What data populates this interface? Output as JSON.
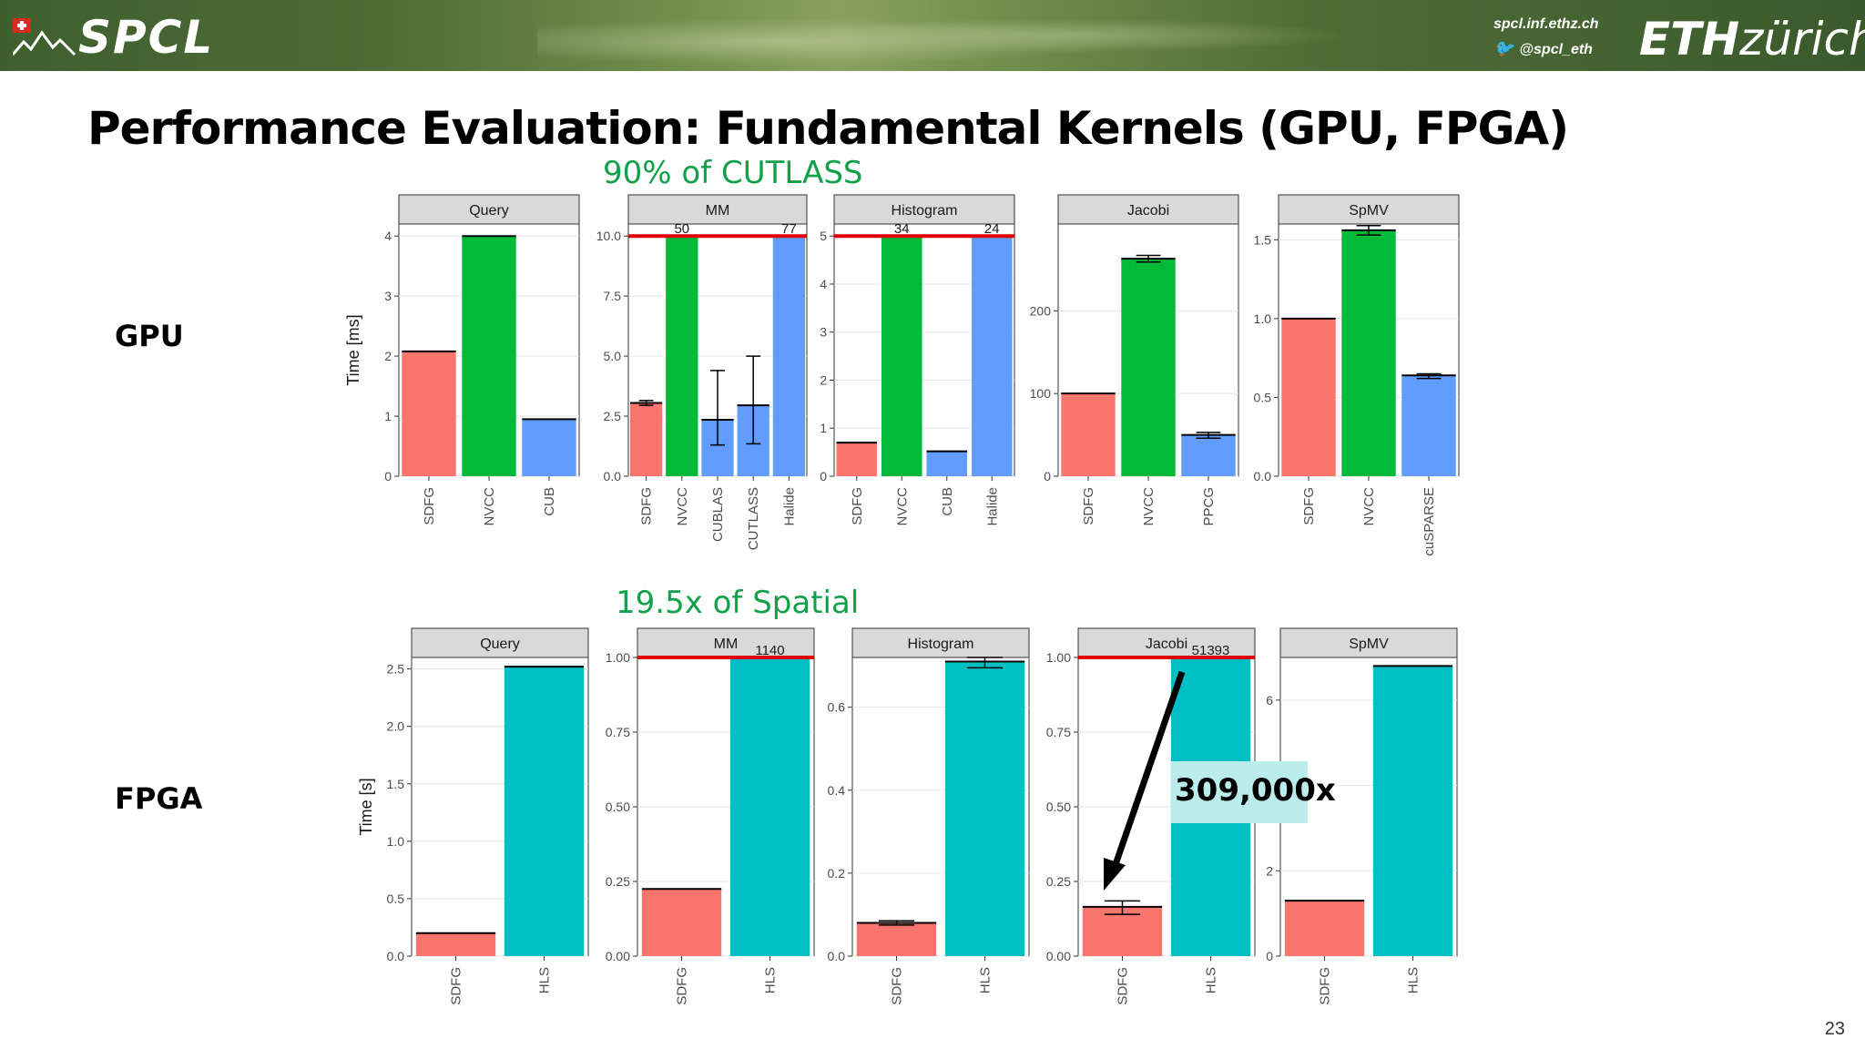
{
  "header": {
    "logo_text": "SPCL",
    "website": "spcl.inf.ethz.ch",
    "twitter": "@spcl_eth",
    "eth_bold": "ETH",
    "eth_light": "zürich",
    "twitter_icon": "twitter-bird-icon",
    "flag_icon": "swiss-flag-icon"
  },
  "slide": {
    "title": "Performance Evaluation: Fundamental Kernels (GPU, FPGA)",
    "row_gpu": "GPU",
    "row_fpga": "FPGA",
    "callout_gpu": "90% of CUTLASS",
    "callout_fpga": "19.5x of Spatial",
    "annotation": "309,000x",
    "page_number": "23"
  },
  "colors": {
    "SDFG": "#f8766d",
    "NVCC": "#00ba38",
    "library": "#619cff",
    "HLS": "#00bfc4",
    "cap_line": "#e00000",
    "callout": "#12a04a"
  },
  "chart_data": [
    {
      "type": "bar",
      "row": "GPU",
      "facet": "Query",
      "ylabel": "Time [ms]",
      "ylim": [
        0,
        4.2
      ],
      "ticks": [
        0,
        1,
        2,
        3,
        4
      ],
      "categories": [
        "SDFG",
        "NVCC",
        "CUB"
      ],
      "values": [
        2.08,
        4.0,
        0.95
      ],
      "colors": [
        "SDFG",
        "NVCC",
        "library"
      ]
    },
    {
      "type": "bar",
      "row": "GPU",
      "facet": "MM",
      "ylim": [
        0,
        10.5
      ],
      "ticks": [
        0.0,
        2.5,
        5.0,
        7.5,
        10.0
      ],
      "tick_labels": [
        "0.0",
        "2.5",
        "5.0",
        "7.5",
        "10.0"
      ],
      "categories": [
        "SDFG",
        "NVCC",
        "CUBLAS",
        "CUTLASS",
        "Halide"
      ],
      "values": [
        3.05,
        10,
        2.35,
        2.95,
        10
      ],
      "error": [
        [
          2.95,
          3.15
        ],
        null,
        [
          1.3,
          4.4
        ],
        [
          1.35,
          5.0
        ],
        null
      ],
      "colors": [
        "SDFG",
        "NVCC",
        "library",
        "library",
        "library"
      ],
      "cap": 10,
      "cap_labels": [
        {
          "index": 1,
          "text": "50"
        },
        {
          "index": 4,
          "text": "77"
        }
      ]
    },
    {
      "type": "bar",
      "row": "GPU",
      "facet": "Histogram",
      "ylim": [
        0,
        5.25
      ],
      "ticks": [
        0,
        1,
        2,
        3,
        4,
        5
      ],
      "categories": [
        "SDFG",
        "NVCC",
        "CUB",
        "Halide"
      ],
      "values": [
        0.7,
        5,
        0.52,
        5
      ],
      "colors": [
        "SDFG",
        "NVCC",
        "library",
        "library"
      ],
      "cap": 5,
      "cap_labels": [
        {
          "index": 1,
          "text": "34"
        },
        {
          "index": 3,
          "text": "24"
        }
      ]
    },
    {
      "type": "bar",
      "row": "GPU",
      "facet": "Jacobi",
      "ylim": [
        0,
        305
      ],
      "ticks": [
        0,
        100,
        200
      ],
      "categories": [
        "SDFG",
        "NVCC",
        "PPCG"
      ],
      "values": [
        100,
        263,
        50
      ],
      "error": [
        null,
        [
          259,
          267
        ],
        [
          46,
          53
        ]
      ],
      "colors": [
        "SDFG",
        "NVCC",
        "library"
      ]
    },
    {
      "type": "bar",
      "row": "GPU",
      "facet": "SpMV",
      "ylim": [
        0,
        1.6
      ],
      "ticks": [
        0.0,
        0.5,
        1.0,
        1.5
      ],
      "tick_labels": [
        "0.0",
        "0.5",
        "1.0",
        "1.5"
      ],
      "categories": [
        "SDFG",
        "NVCC",
        "cuSPARSE"
      ],
      "values": [
        1.0,
        1.56,
        0.64
      ],
      "error": [
        null,
        [
          1.53,
          1.59
        ],
        [
          0.62,
          0.65
        ]
      ],
      "colors": [
        "SDFG",
        "NVCC",
        "library"
      ]
    },
    {
      "type": "bar",
      "row": "FPGA",
      "facet": "Query",
      "ylabel": "Time [s]",
      "ylim": [
        0,
        2.6
      ],
      "ticks": [
        0.0,
        0.5,
        1.0,
        1.5,
        2.0,
        2.5
      ],
      "tick_labels": [
        "0.0",
        "0.5",
        "1.0",
        "1.5",
        "2.0",
        "2.5"
      ],
      "categories": [
        "SDFG",
        "HLS"
      ],
      "values": [
        0.2,
        2.52
      ],
      "colors": [
        "SDFG",
        "HLS"
      ]
    },
    {
      "type": "bar",
      "row": "FPGA",
      "facet": "MM",
      "ylim": [
        0,
        1.0
      ],
      "ticks": [
        0.0,
        0.25,
        0.5,
        0.75,
        1.0
      ],
      "tick_labels": [
        "0.00",
        "0.25",
        "0.50",
        "0.75",
        "1.00"
      ],
      "categories": [
        "SDFG",
        "HLS"
      ],
      "values": [
        0.225,
        1.0
      ],
      "colors": [
        "SDFG",
        "HLS"
      ],
      "cap": 1.0,
      "cap_labels": [
        {
          "index": 1,
          "text": "1140"
        }
      ]
    },
    {
      "type": "bar",
      "row": "FPGA",
      "facet": "Histogram",
      "ylim": [
        0,
        0.72
      ],
      "ticks": [
        0.0,
        0.2,
        0.4,
        0.6
      ],
      "tick_labels": [
        "0.0",
        "0.2",
        "0.4",
        "0.6"
      ],
      "categories": [
        "SDFG",
        "HLS"
      ],
      "values": [
        0.08,
        0.71
      ],
      "error": [
        [
          0.075,
          0.085
        ],
        [
          0.695,
          0.72
        ]
      ],
      "colors": [
        "SDFG",
        "HLS"
      ]
    },
    {
      "type": "bar",
      "row": "FPGA",
      "facet": "Jacobi",
      "ylim": [
        0,
        1.0
      ],
      "ticks": [
        0.0,
        0.25,
        0.5,
        0.75,
        1.0
      ],
      "tick_labels": [
        "0.00",
        "0.25",
        "0.50",
        "0.75",
        "1.00"
      ],
      "categories": [
        "SDFG",
        "HLS"
      ],
      "values": [
        0.165,
        1.0
      ],
      "error": [
        [
          0.14,
          0.185
        ],
        null
      ],
      "colors": [
        "SDFG",
        "HLS"
      ],
      "cap": 1.0,
      "cap_labels": [
        {
          "index": 1,
          "text": "51393"
        }
      ]
    },
    {
      "type": "bar",
      "row": "FPGA",
      "facet": "SpMV",
      "ylim": [
        0,
        7.0
      ],
      "ticks": [
        0,
        2,
        4,
        6
      ],
      "categories": [
        "SDFG",
        "HLS"
      ],
      "values": [
        1.3,
        6.8
      ],
      "colors": [
        "SDFG",
        "HLS"
      ]
    }
  ]
}
